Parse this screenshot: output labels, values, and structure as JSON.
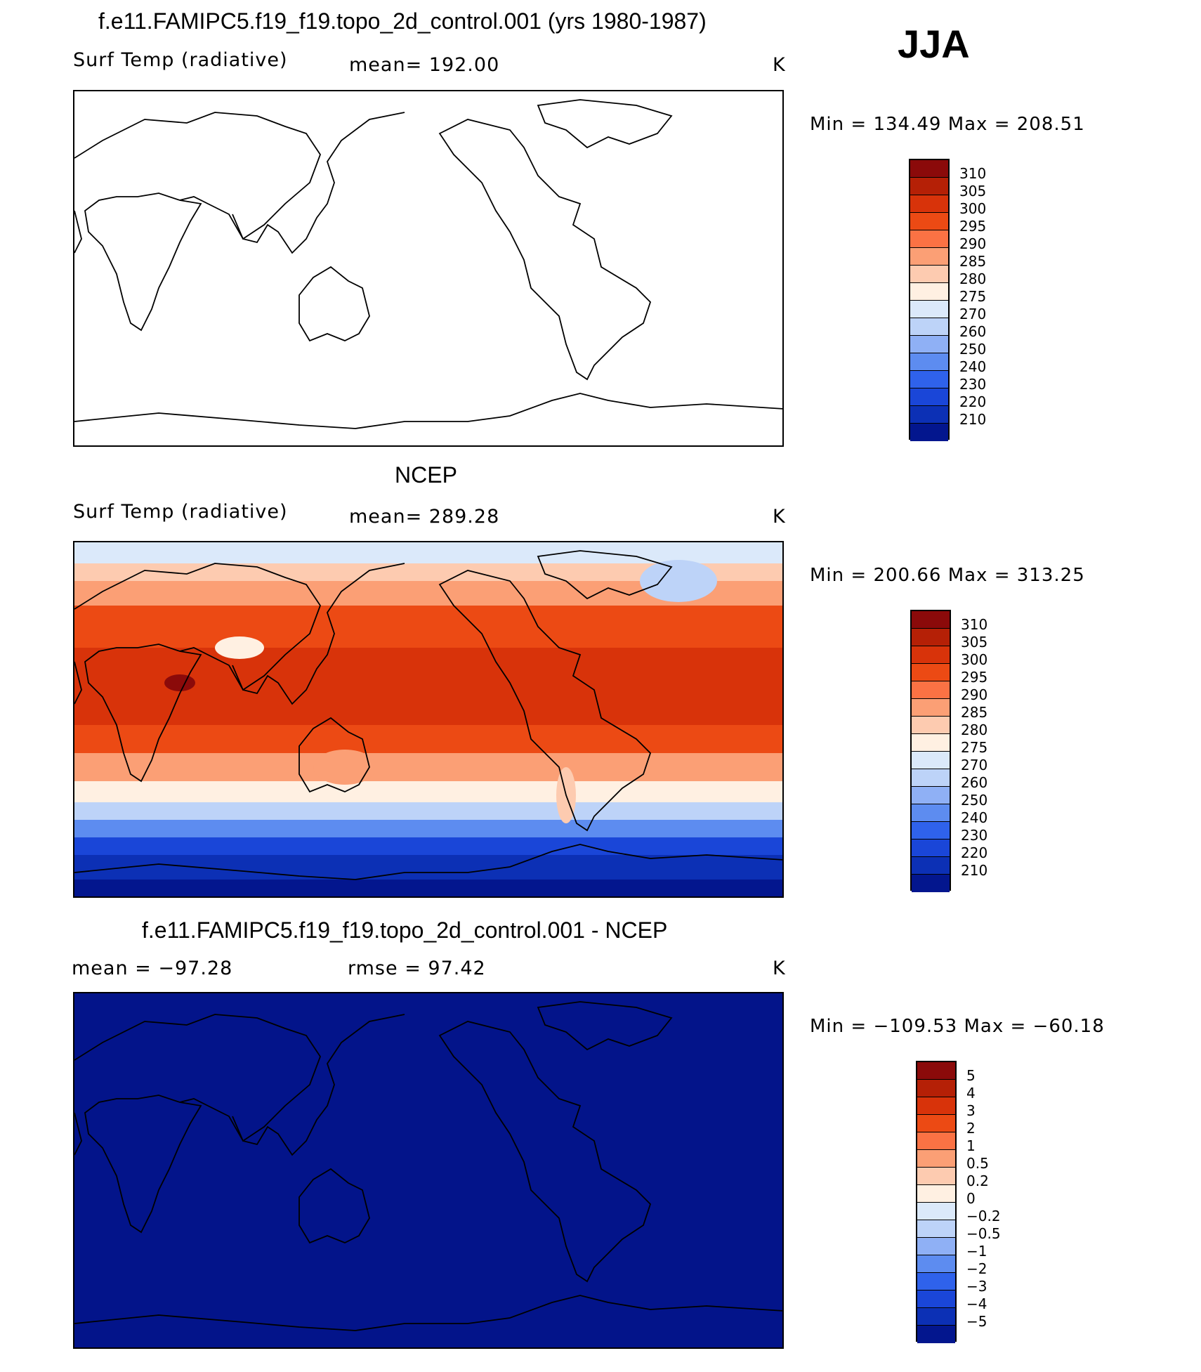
{
  "panels": [
    {
      "title": "f.e11.FAMIPC5.f19_f19.topo_2d_control.001 (yrs 1980-1987)",
      "left_label": "Surf Temp (radiative)",
      "center_label": "mean= 192.00",
      "units": "K",
      "min_max": "Min = 134.49 Max = 208.51",
      "fill": "none"
    },
    {
      "title": "NCEP",
      "left_label": "Surf Temp (radiative)",
      "center_label": "mean= 289.28",
      "units": "K",
      "min_max": "Min = 200.66 Max = 313.25",
      "fill": "temperature"
    },
    {
      "title": "f.e11.FAMIPC5.f19_f19.topo_2d_control.001 - NCEP",
      "left_label": "mean = −97.28",
      "center_label": "rmse = 97.42",
      "units": "K",
      "min_max": "Min = −109.53 Max = −60.18",
      "fill": "uniform"
    }
  ],
  "season": "JJA",
  "colorbars": {
    "temperature": {
      "colors": [
        "#8b0a0a",
        "#b52006",
        "#d8330a",
        "#ec4a14",
        "#fb7244",
        "#fb9f75",
        "#fdcbb0",
        "#fff0e2",
        "#dbe9fa",
        "#bdd3f8",
        "#8fb0f5",
        "#5d8cf0",
        "#2f62eb",
        "#1a46d8",
        "#0c30b5",
        "#03168e"
      ],
      "labels": [
        "310",
        "305",
        "300",
        "295",
        "290",
        "285",
        "280",
        "275",
        "270",
        "260",
        "250",
        "240",
        "230",
        "220",
        "210"
      ]
    },
    "difference": {
      "colors": [
        "#8b0a0a",
        "#b52006",
        "#d8330a",
        "#ec4a14",
        "#fb7244",
        "#fb9f75",
        "#fdcbb0",
        "#fff0e2",
        "#dbe9fa",
        "#bdd3f8",
        "#8fb0f5",
        "#5d8cf0",
        "#2f62eb",
        "#1a46d8",
        "#0c30b5",
        "#03168e"
      ],
      "labels": [
        "5",
        "4",
        "3",
        "2",
        "1",
        "0.5",
        "0.2",
        "0",
        "−0.2",
        "−0.5",
        "−1",
        "−2",
        "−3",
        "−4",
        "−5"
      ]
    }
  },
  "uniform_fill_color": "#03148a"
}
